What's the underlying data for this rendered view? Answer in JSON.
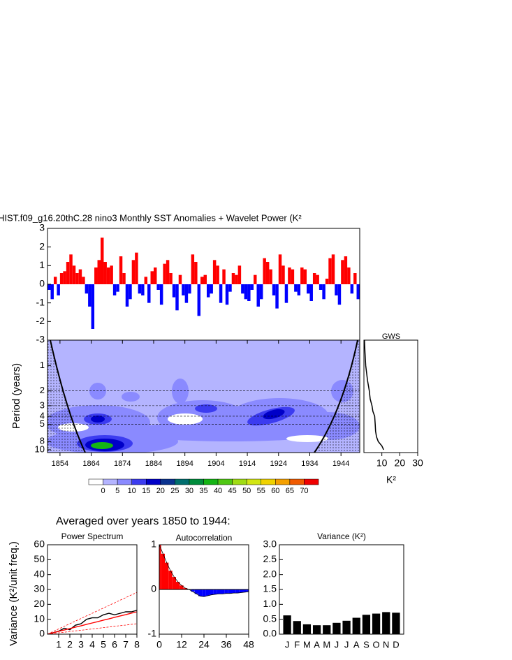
{
  "chart_data": [
    {
      "type": "bar",
      "title": "HIST.f09_g16.20thC.28 nino3 Monthly SST Anomalies + Wavelet Power (K²",
      "x": [
        1850,
        1851,
        1852,
        1853,
        1854,
        1855,
        1856,
        1857,
        1858,
        1859,
        1860,
        1861,
        1862,
        1863,
        1864,
        1865,
        1866,
        1867,
        1868,
        1869,
        1870,
        1871,
        1872,
        1873,
        1874,
        1875,
        1876,
        1877,
        1878,
        1879,
        1880,
        1881,
        1882,
        1883,
        1884,
        1885,
        1886,
        1887,
        1888,
        1889,
        1890,
        1891,
        1892,
        1893,
        1894,
        1895,
        1896,
        1897,
        1898,
        1899,
        1900,
        1901,
        1902,
        1903,
        1904,
        1905,
        1906,
        1907,
        1908,
        1909,
        1910,
        1911,
        1912,
        1913,
        1914,
        1915,
        1916,
        1917,
        1918,
        1919,
        1920,
        1921,
        1922,
        1923,
        1924,
        1925,
        1926,
        1927,
        1928,
        1929,
        1930,
        1931,
        1932,
        1933,
        1934,
        1935,
        1936,
        1937,
        1938,
        1939,
        1940,
        1941,
        1942,
        1943,
        1944,
        1945,
        1946,
        1947,
        1948,
        1949
      ],
      "values": [
        -0.3,
        -0.8,
        0.4,
        -0.6,
        0.6,
        0.7,
        1.2,
        1.6,
        1.0,
        0.6,
        0.8,
        0.4,
        -0.5,
        -1.2,
        -2.4,
        0.9,
        1.3,
        2.5,
        1.2,
        0.9,
        1.0,
        -0.6,
        -0.4,
        1.5,
        0.6,
        -1.2,
        -0.8,
        1.3,
        1.7,
        -0.5,
        -0.6,
        0.4,
        -1.0,
        0.7,
        0.9,
        -0.3,
        -1.1,
        1.1,
        1.3,
        0.6,
        -0.7,
        -1.4,
        0.5,
        -0.6,
        -1.0,
        -0.5,
        1.6,
        1.2,
        -1.7,
        0.4,
        0.5,
        -0.7,
        -0.5,
        1.3,
        1.0,
        -1.0,
        0.8,
        -1.1,
        -0.4,
        0.6,
        0.5,
        1.0,
        -0.5,
        -0.8,
        -0.9,
        -0.3,
        0.5,
        -1.2,
        -0.8,
        1.4,
        1.2,
        0.8,
        -0.6,
        -1.3,
        1.6,
        1.0,
        -1.0,
        0.9,
        0.8,
        -0.4,
        -0.6,
        0.9,
        0.8,
        -0.5,
        -0.9,
        0.6,
        0.5,
        -0.3,
        -0.8,
        0.3,
        1.4,
        1.6,
        -0.6,
        -1.1,
        1.3,
        1.5,
        0.9,
        -0.5,
        0.6,
        -0.8
      ],
      "positive_color": "#ff0000",
      "negative_color": "#0000ff",
      "xlim": [
        1850,
        1950
      ],
      "ylim": [
        -3,
        3
      ],
      "yticks": [
        -3,
        -2,
        -1,
        0,
        1,
        2,
        3
      ]
    },
    {
      "type": "contour",
      "ylabel": "Period (years)",
      "log_scale": true,
      "xlim": [
        1850,
        1950
      ],
      "xticks": [
        1854,
        1864,
        1874,
        1884,
        1894,
        1904,
        1914,
        1924,
        1934,
        1944
      ],
      "ylim": [
        0.5,
        10.8
      ],
      "yticks": [
        1,
        2,
        3,
        4,
        5,
        8,
        10
      ],
      "colorbar": {
        "colors": [
          "#ffffff",
          "#b4b4ff",
          "#8a8aff",
          "#3c3cf0",
          "#0000c8",
          "#0a3290",
          "#006e6e",
          "#008c3c",
          "#14b414",
          "#50c814",
          "#a0dc14",
          "#d2e614",
          "#f0d200",
          "#f5a000",
          "#f05a00",
          "#f00000"
        ],
        "labels": [
          0,
          5,
          10,
          15,
          20,
          25,
          30,
          35,
          40,
          45,
          50,
          55,
          60,
          65,
          70
        ]
      }
    },
    {
      "type": "line",
      "title": "GWS",
      "xlabel": "K²",
      "xlim": [
        0,
        30
      ],
      "xticks": [
        10,
        20,
        30
      ],
      "periods": [
        0.5,
        0.7,
        1,
        1.5,
        2,
        2.5,
        3,
        3.5,
        4,
        5,
        6,
        7,
        8,
        9,
        10
      ],
      "values": [
        0.3,
        0.6,
        1,
        2,
        3,
        3.5,
        4.5,
        5,
        6,
        6.3,
        6.5,
        7,
        8,
        10,
        11
      ]
    },
    {
      "type": "line",
      "heading": "Averaged over years 1850 to 1944:",
      "title": "Power Spectrum",
      "ylabel": "Variance (K²/unit freq.)",
      "xlim": [
        0,
        8
      ],
      "xticks": [
        1,
        2,
        3,
        4,
        5,
        6,
        7,
        8
      ],
      "ylim": [
        0,
        60
      ],
      "yticks": [
        0,
        10,
        20,
        30,
        40,
        50,
        60
      ],
      "x": [
        0,
        0.5,
        1,
        1.5,
        2,
        2.5,
        3,
        3.5,
        4,
        4.5,
        5,
        5.5,
        6,
        6.5,
        7,
        7.5,
        8
      ],
      "series": [
        {
          "color": "#000000",
          "values": [
            0,
            1,
            2,
            4,
            3,
            6,
            7,
            10,
            11,
            11,
            13,
            14,
            13,
            14,
            15,
            15,
            16
          ]
        },
        {
          "color": "#ff0000",
          "values": [
            0,
            0.9,
            1.9,
            2.8,
            3.8,
            4.7,
            5.6,
            6.6,
            7.5,
            8.4,
            9.4,
            10.3,
            11.3,
            12.2,
            13.1,
            14.1,
            15
          ]
        },
        {
          "color": "#ff0000",
          "dashed": true,
          "values": [
            0,
            1.8,
            3.5,
            5.3,
            7,
            8.8,
            10.5,
            12.3,
            14,
            15.8,
            17.5,
            19.3,
            21,
            22.8,
            24.5,
            26.3,
            28
          ]
        },
        {
          "color": "#ff0000",
          "dashed": true,
          "values": [
            0,
            0.4,
            0.9,
            1.3,
            1.8,
            2.2,
            2.6,
            3.1,
            3.5,
            3.9,
            4.4,
            4.8,
            5.3,
            5.7,
            6.1,
            6.6,
            7
          ]
        }
      ]
    },
    {
      "type": "area",
      "title": "Autocorrelation",
      "xlim": [
        0,
        48
      ],
      "xticks": [
        0,
        12,
        24,
        36,
        48
      ],
      "ylim": [
        -1,
        1
      ],
      "yticks": [
        -1,
        0,
        1
      ],
      "positive_color": "#ff0000",
      "negative_color": "#0000ff",
      "x": [
        0,
        2,
        4,
        6,
        8,
        10,
        12,
        14,
        16,
        18,
        20,
        22,
        24,
        26,
        28,
        30,
        32,
        34,
        36,
        38,
        40,
        42,
        44,
        46,
        48
      ],
      "values": [
        1,
        0.8,
        0.6,
        0.42,
        0.28,
        0.17,
        0.09,
        0.03,
        0,
        -0.05,
        -0.1,
        -0.15,
        -0.16,
        -0.14,
        -0.12,
        -0.11,
        -0.1,
        -0.1,
        -0.09,
        -0.09,
        -0.08,
        -0.08,
        -0.07,
        -0.06,
        -0.05
      ]
    },
    {
      "type": "bar",
      "title": "Variance (K²)",
      "color": "#000000",
      "categories": [
        "J",
        "F",
        "M",
        "A",
        "M",
        "J",
        "J",
        "A",
        "S",
        "O",
        "N",
        "D"
      ],
      "values": [
        0.63,
        0.44,
        0.33,
        0.3,
        0.3,
        0.38,
        0.45,
        0.55,
        0.65,
        0.69,
        0.74,
        0.72
      ],
      "ylim": [
        0,
        3
      ],
      "yticks": [
        {
          "value": 0,
          "label": "0.0"
        },
        {
          "value": 0.5,
          "label": "0.5"
        },
        {
          "value": 1,
          "label": "1.0"
        },
        {
          "value": 1.5,
          "label": "1.5"
        },
        {
          "value": 2,
          "label": "2.0"
        },
        {
          "value": 2.5,
          "label": "2.5"
        },
        {
          "value": 3,
          "label": "3.0"
        }
      ]
    }
  ]
}
